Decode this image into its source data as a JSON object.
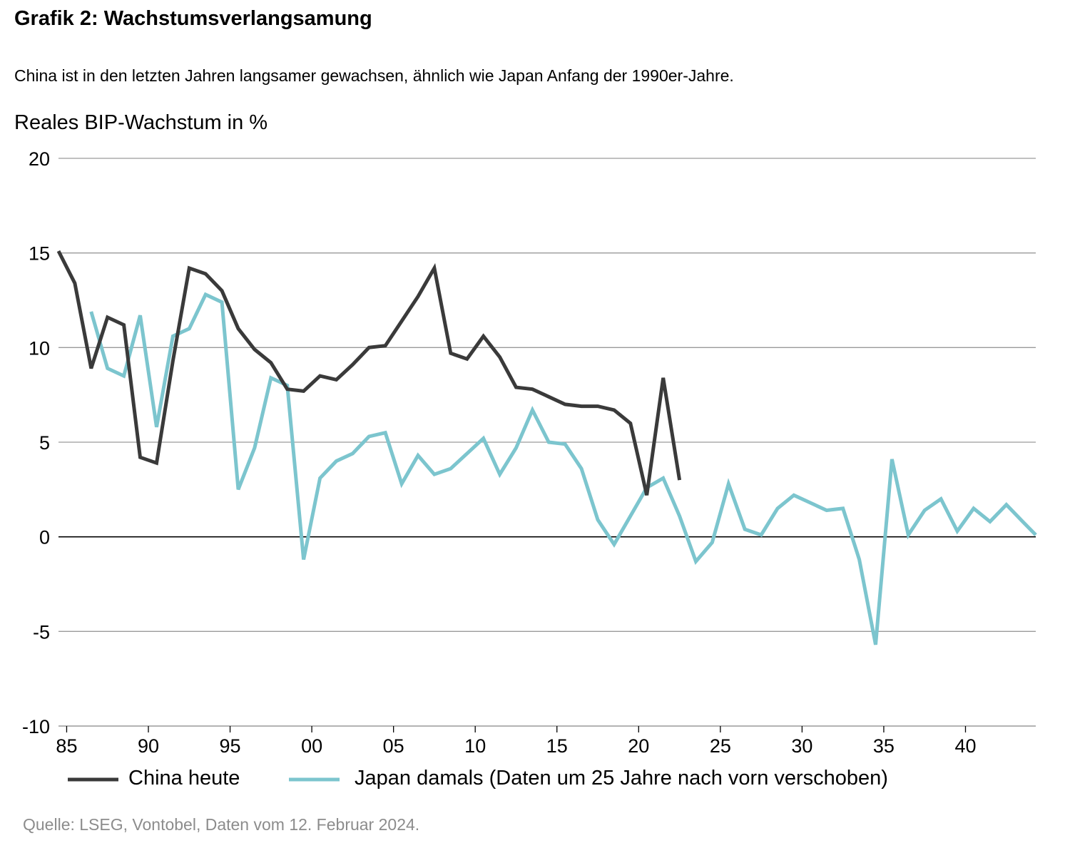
{
  "header": {
    "title": "Grafik 2: Wachstumsverlangsamung",
    "subtitle": "China ist in den letzten Jahren langsamer gewachsen, ähnlich wie Japan Anfang der 1990er-Jahre."
  },
  "footer": {
    "source": "Quelle: LSEG, Vontobel, Daten vom 12. Februar 2024."
  },
  "chart_data": {
    "type": "line",
    "title": "Grafik 2: Wachstumsverlangsamung",
    "subtitle": "China ist in den letzten Jahren langsamer gewachsen, ähnlich wie Japan Anfang der 1990er-Jahre.",
    "ylabel": "Reales BIP-Wachstum in %",
    "xlabel": "",
    "ylim": [
      -10,
      20
    ],
    "xlim": [
      1984.5,
      2044.3
    ],
    "yticks": [
      20,
      15,
      10,
      5,
      0,
      -5,
      -10
    ],
    "xticks": [
      1985,
      1990,
      1995,
      2000,
      2005,
      2010,
      2015,
      2020,
      2025,
      2030,
      2035,
      2040
    ],
    "xtick_labels": [
      "85",
      "90",
      "95",
      "00",
      "05",
      "10",
      "15",
      "20",
      "25",
      "30",
      "35",
      "40"
    ],
    "grid": "horizontal",
    "legend_position": "bottom",
    "series": [
      {
        "name": "China heute",
        "color": "#3a3a3a",
        "x": [
          1984.5,
          1985.5,
          1986.5,
          1987.5,
          1988.5,
          1989.5,
          1990.5,
          1991.5,
          1992.5,
          1993.5,
          1994.5,
          1995.5,
          1996.5,
          1997.5,
          1998.5,
          1999.5,
          2000.5,
          2001.5,
          2002.5,
          2003.5,
          2004.5,
          2005.5,
          2006.5,
          2007.5,
          2008.5,
          2009.5,
          2010.5,
          2011.5,
          2012.5,
          2013.5,
          2014.5,
          2015.5,
          2016.5,
          2017.5,
          2018.5,
          2019.5,
          2020.5,
          2021.5,
          2022.5
        ],
        "values": [
          15.1,
          13.4,
          8.9,
          11.6,
          11.2,
          4.2,
          3.9,
          9.3,
          14.2,
          13.9,
          13.0,
          11.0,
          9.9,
          9.2,
          7.8,
          7.7,
          8.5,
          8.3,
          9.1,
          10.0,
          10.1,
          11.4,
          12.7,
          14.2,
          9.7,
          9.4,
          10.6,
          9.5,
          7.9,
          7.8,
          7.4,
          7.0,
          6.9,
          6.9,
          6.7,
          6.0,
          2.2,
          8.4,
          3.0
        ]
      },
      {
        "name": "Japan damals (Daten um 25 Jahre nach vorn verschoben)",
        "color": "#7cc5ce",
        "x": [
          1986.5,
          1987.5,
          1988.5,
          1989.5,
          1990.5,
          1991.5,
          1992.5,
          1993.5,
          1994.5,
          1995.5,
          1996.5,
          1997.5,
          1998.5,
          1999.5,
          2000.5,
          2001.5,
          2002.5,
          2003.5,
          2004.5,
          2005.5,
          2006.5,
          2007.5,
          2008.5,
          2009.5,
          2010.5,
          2011.5,
          2012.5,
          2013.5,
          2014.5,
          2015.5,
          2016.5,
          2017.5,
          2018.5,
          2019.5,
          2020.5,
          2021.5,
          2022.5,
          2023.5,
          2024.5,
          2025.5,
          2026.5,
          2027.5,
          2028.5,
          2029.5,
          2030.5,
          2031.5,
          2032.5,
          2033.5,
          2034.5,
          2035.5,
          2036.5,
          2037.5,
          2038.5,
          2039.5,
          2040.5,
          2041.5,
          2042.5,
          2043.5,
          2044.3
        ],
        "values": [
          11.9,
          8.9,
          8.5,
          11.7,
          5.8,
          10.6,
          11.0,
          12.8,
          12.4,
          2.5,
          4.7,
          8.4,
          8.0,
          -1.2,
          3.1,
          4.0,
          4.4,
          5.3,
          5.5,
          2.8,
          4.3,
          3.3,
          3.6,
          4.4,
          5.2,
          3.3,
          4.7,
          6.7,
          5.0,
          4.9,
          3.6,
          0.9,
          -0.4,
          1.1,
          2.6,
          3.1,
          1.1,
          -1.3,
          -0.3,
          2.8,
          0.4,
          0.1,
          1.5,
          2.2,
          1.8,
          1.4,
          1.5,
          -1.2,
          -5.7,
          4.1,
          0.1,
          1.4,
          2.0,
          0.3,
          1.5,
          0.8,
          1.7,
          0.8,
          0.1
        ]
      }
    ]
  }
}
